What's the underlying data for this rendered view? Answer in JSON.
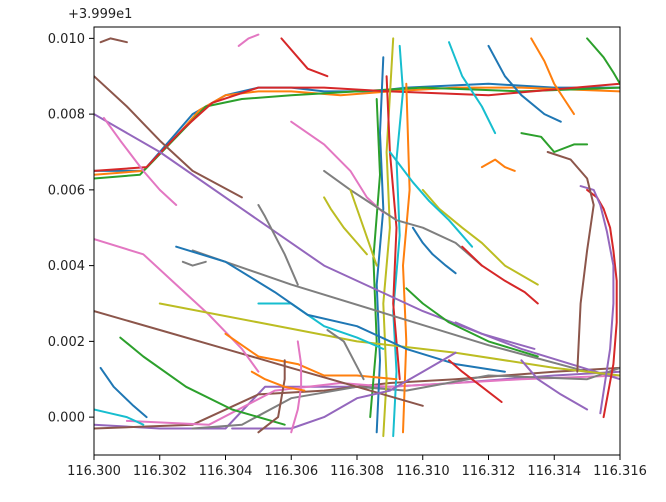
{
  "chart_data": {
    "type": "line",
    "title": "",
    "xlabel": "",
    "ylabel": "",
    "y_offset_text": "+3.999e1",
    "xlim": [
      116.3,
      116.316
    ],
    "ylim": [
      -0.001,
      0.0103
    ],
    "grid": false,
    "legend": "none",
    "x_ticks": [
      116.3,
      116.302,
      116.304,
      116.306,
      116.308,
      116.31,
      116.312,
      116.314,
      116.316
    ],
    "x_tick_labels": [
      "116.300",
      "116.302",
      "116.304",
      "116.306",
      "116.308",
      "116.310",
      "116.312",
      "116.314",
      "116.316"
    ],
    "y_ticks": [
      0.0,
      0.002,
      0.004,
      0.006,
      0.008,
      0.01
    ],
    "y_tick_labels": [
      "0.000",
      "0.002",
      "0.004",
      "0.006",
      "0.008",
      "0.010"
    ],
    "colors": [
      "#1f77b4",
      "#ff7f0e",
      "#2ca02c",
      "#d62728",
      "#9467bd",
      "#8c564b",
      "#e377c2",
      "#7f7f7f",
      "#bcbd22",
      "#17becf"
    ],
    "series": [
      {
        "x": [
          116.3,
          116.3015,
          116.3025,
          116.303,
          116.304,
          116.305,
          116.306,
          116.307,
          116.3085,
          116.3095,
          116.312,
          116.314,
          116.316
        ],
        "y": [
          0.0065,
          0.0065,
          0.0075,
          0.008,
          0.0085,
          0.0087,
          0.0087,
          0.0086,
          0.0086,
          0.0087,
          0.0088,
          0.0087,
          0.0087
        ]
      },
      {
        "x": [
          116.3,
          116.3015,
          116.3025,
          116.3032,
          116.304,
          116.305,
          116.306,
          116.3075,
          116.309,
          116.311,
          116.313,
          116.316
        ],
        "y": [
          0.0064,
          0.0065,
          0.0074,
          0.0081,
          0.0085,
          0.0086,
          0.0086,
          0.0085,
          0.0086,
          0.0087,
          0.0087,
          0.0086
        ]
      },
      {
        "x": [
          116.3,
          116.3014,
          116.3024,
          116.3034,
          116.3045,
          116.306,
          116.308,
          116.31,
          116.313,
          116.316
        ],
        "y": [
          0.0063,
          0.0064,
          0.0073,
          0.0082,
          0.0084,
          0.0085,
          0.0086,
          0.0087,
          0.0086,
          0.0087
        ]
      },
      {
        "x": [
          116.3,
          116.3016,
          116.3027,
          116.3036,
          116.305,
          116.307,
          116.309,
          116.312,
          116.316
        ],
        "y": [
          0.0065,
          0.0066,
          0.0076,
          0.0083,
          0.0087,
          0.0087,
          0.0086,
          0.0085,
          0.0088
        ]
      },
      {
        "x": [
          116.3,
          116.302,
          116.304,
          116.3052,
          116.307,
          116.309,
          116.311,
          116.314,
          116.316
        ],
        "y": [
          -0.0002,
          -0.0003,
          -0.0003,
          0.0008,
          0.0008,
          0.0008,
          0.0009,
          0.0011,
          0.0012
        ]
      },
      {
        "x": [
          116.3,
          116.303,
          116.305,
          116.307,
          116.309,
          116.311,
          116.314,
          116.316
        ],
        "y": [
          -0.0003,
          -0.0002,
          0.0006,
          0.0007,
          0.0009,
          0.001,
          0.0012,
          0.0013
        ]
      },
      {
        "x": [
          116.301,
          116.3035,
          116.3055,
          116.3075,
          116.309,
          116.311,
          116.313,
          116.316
        ],
        "y": [
          -0.0001,
          -0.0002,
          0.0007,
          0.0009,
          0.0008,
          0.0009,
          0.001,
          0.0011
        ]
      },
      {
        "x": [
          116.303,
          116.3045,
          116.306,
          116.308,
          116.3095,
          116.312,
          116.315,
          116.316
        ],
        "y": [
          -0.0003,
          -0.0002,
          0.0005,
          0.0008,
          0.0007,
          0.0011,
          0.001,
          0.0013
        ]
      },
      {
        "x": [
          116.3088,
          116.3089,
          116.3088,
          116.309,
          116.3089,
          116.309,
          116.3091
        ],
        "y": [
          -0.0005,
          0.001,
          0.003,
          0.005,
          0.007,
          0.0085,
          0.01
        ]
      },
      {
        "x": [
          116.3091,
          116.3092,
          116.3091,
          116.3093,
          116.3092,
          116.3094,
          116.3093
        ],
        "y": [
          -0.0005,
          0.0012,
          0.0028,
          0.0048,
          0.0068,
          0.0086,
          0.0098
        ]
      },
      {
        "x": [
          116.3086,
          116.3087,
          116.3086,
          116.3088,
          116.3087,
          116.3088
        ],
        "y": [
          -0.0004,
          0.0015,
          0.0035,
          0.0055,
          0.0075,
          0.0095
        ]
      },
      {
        "x": [
          116.3094,
          116.3095,
          116.3094,
          116.3096,
          116.3095
        ],
        "y": [
          -0.0004,
          0.002,
          0.004,
          0.006,
          0.0088
        ]
      },
      {
        "x": [
          116.3084,
          116.3086,
          116.3085,
          116.3087,
          116.3086
        ],
        "y": [
          0.0,
          0.002,
          0.0042,
          0.0064,
          0.0084
        ]
      },
      {
        "x": [
          116.3089,
          116.309,
          116.3092,
          116.3091,
          116.3093
        ],
        "y": [
          0.009,
          0.007,
          0.005,
          0.003,
          0.001
        ]
      },
      {
        "x": [
          116.3,
          116.302,
          116.3045,
          116.307,
          116.31,
          116.313,
          116.316
        ],
        "y": [
          0.008,
          0.007,
          0.0055,
          0.004,
          0.0028,
          0.0018,
          0.001
        ]
      },
      {
        "x": [
          116.3,
          116.302,
          116.304,
          116.306,
          116.308,
          116.31
        ],
        "y": [
          0.0028,
          0.0023,
          0.0018,
          0.0013,
          0.0008,
          0.0003
        ]
      },
      {
        "x": [
          116.3,
          116.3015,
          116.3025,
          116.3035,
          116.3045,
          116.305
        ],
        "y": [
          0.0047,
          0.0043,
          0.0035,
          0.0027,
          0.0018,
          0.0012
        ]
      },
      {
        "x": [
          116.303,
          116.306,
          116.309,
          116.312,
          116.315
        ],
        "y": [
          0.0044,
          0.0035,
          0.0027,
          0.0019,
          0.0012
        ]
      },
      {
        "x": [
          116.302,
          116.305,
          116.308,
          116.311,
          116.314,
          116.316
        ],
        "y": [
          0.003,
          0.0025,
          0.002,
          0.0017,
          0.0013,
          0.0011
        ]
      },
      {
        "x": [
          116.305,
          116.306,
          116.307,
          116.308,
          116.3088
        ],
        "y": [
          0.003,
          0.003,
          0.0024,
          0.0021,
          0.0018
        ]
      },
      {
        "x": [
          116.3025,
          116.304,
          116.3055,
          116.3065,
          116.308,
          116.3095,
          116.311,
          116.3125
        ],
        "y": [
          0.0045,
          0.0041,
          0.0033,
          0.0027,
          0.0024,
          0.0018,
          0.0014,
          0.0012
        ]
      },
      {
        "x": [
          116.304,
          116.305,
          116.3062,
          116.307,
          116.308,
          116.3092
        ],
        "y": [
          0.0022,
          0.0016,
          0.0014,
          0.0011,
          0.0011,
          0.001
        ]
      },
      {
        "x": [
          116.3008,
          116.3015,
          116.3028,
          116.3042,
          116.3058
        ],
        "y": [
          0.0021,
          0.0016,
          0.0008,
          0.0002,
          -0.0002
        ]
      },
      {
        "x": [
          116.315,
          116.3153,
          116.3155,
          116.3157,
          116.3158,
          116.3159,
          116.3159,
          116.3158,
          116.3155
        ],
        "y": [
          0.006,
          0.0058,
          0.0055,
          0.005,
          0.0044,
          0.0036,
          0.0025,
          0.0014,
          0.0
        ]
      },
      {
        "x": [
          116.3148,
          116.3152,
          116.3154,
          116.3156,
          116.3158,
          116.3158,
          116.3157,
          116.3154
        ],
        "y": [
          0.0061,
          0.006,
          0.0056,
          0.0049,
          0.004,
          0.003,
          0.0018,
          0.0001
        ]
      },
      {
        "x": [
          116.3138,
          116.3145,
          116.315,
          116.3152,
          116.315,
          116.3148,
          116.3147
        ],
        "y": [
          0.007,
          0.0068,
          0.0063,
          0.0056,
          0.0044,
          0.003,
          0.0012
        ]
      },
      {
        "x": [
          116.306,
          116.307,
          116.3078,
          116.3083,
          116.3088
        ],
        "y": [
          0.0078,
          0.0072,
          0.0065,
          0.0058,
          0.0054
        ]
      },
      {
        "x": [
          116.307,
          116.3078,
          116.3085,
          116.3092,
          116.31,
          116.311,
          116.3118
        ],
        "y": [
          0.0065,
          0.006,
          0.0056,
          0.0052,
          0.005,
          0.0046,
          0.004
        ]
      },
      {
        "x": [
          116.31,
          116.3105,
          116.3112,
          116.3118,
          116.3125,
          116.3135
        ],
        "y": [
          0.006,
          0.0055,
          0.005,
          0.0046,
          0.004,
          0.0035
        ]
      },
      {
        "x": [
          116.3108,
          116.3112,
          116.3115,
          116.3118,
          116.3122
        ],
        "y": [
          0.0099,
          0.009,
          0.0086,
          0.0082,
          0.0075
        ]
      },
      {
        "x": [
          116.312,
          116.3125,
          116.313,
          116.3137,
          116.3142
        ],
        "y": [
          0.0098,
          0.009,
          0.0085,
          0.008,
          0.0078
        ]
      },
      {
        "x": [
          116.3133,
          116.3137,
          116.314,
          116.3143,
          116.3146
        ],
        "y": [
          0.01,
          0.0094,
          0.0088,
          0.0084,
          0.008
        ]
      },
      {
        "x": [
          116.315,
          116.3155,
          116.3158,
          116.316
        ],
        "y": [
          0.01,
          0.0095,
          0.0091,
          0.0088
        ]
      },
      {
        "x": [
          116.3057,
          116.3062,
          116.3065,
          116.3071
        ],
        "y": [
          0.01,
          0.0095,
          0.0092,
          0.009
        ]
      },
      {
        "x": [
          116.3042,
          116.305,
          116.306,
          116.307,
          116.308,
          116.309,
          116.31,
          116.311
        ],
        "y": [
          -0.0003,
          -0.0003,
          -0.0003,
          0.0,
          0.0005,
          0.0007,
          0.0012,
          0.0017
        ]
      },
      {
        "x": [
          116.3058,
          116.3058,
          116.3057,
          116.3056,
          116.3053,
          116.305
        ],
        "y": [
          0.0015,
          0.001,
          0.0005,
          0.0,
          -0.0002,
          -0.0004
        ]
      },
      {
        "x": [
          116.3062,
          116.3063,
          116.3063,
          116.3062,
          116.306
        ],
        "y": [
          0.002,
          0.0014,
          0.0008,
          0.0002,
          -0.0004
        ]
      },
      {
        "x": [
          116.3071,
          116.3076,
          116.3079,
          116.3082
        ],
        "y": [
          0.0023,
          0.002,
          0.0015,
          0.001
        ]
      },
      {
        "x": [
          116.3078,
          116.308,
          116.3082,
          116.3084,
          116.3086
        ],
        "y": [
          0.006,
          0.0055,
          0.005,
          0.0045,
          0.004
        ]
      },
      {
        "x": [
          116.309,
          116.3097,
          116.3102,
          116.3108,
          116.3115
        ],
        "y": [
          0.007,
          0.0062,
          0.0057,
          0.0052,
          0.0045
        ]
      },
      {
        "x": [
          116.3097,
          116.31,
          116.3103,
          116.3107,
          116.311
        ],
        "y": [
          0.005,
          0.0046,
          0.0043,
          0.004,
          0.0038
        ]
      },
      {
        "x": [
          116.3118,
          116.3122,
          116.3125,
          116.3128
        ],
        "y": [
          0.0066,
          0.0068,
          0.0066,
          0.0065
        ]
      },
      {
        "x": [
          116.313,
          116.3136,
          116.314,
          116.3146,
          116.315
        ],
        "y": [
          0.0075,
          0.0074,
          0.007,
          0.0072,
          0.0072
        ]
      },
      {
        "x": [
          116.3112,
          116.3118,
          116.3125,
          116.3131,
          116.3135
        ],
        "y": [
          0.0045,
          0.004,
          0.0036,
          0.0033,
          0.003
        ]
      },
      {
        "x": [
          116.311,
          116.3118,
          116.3126,
          116.3134
        ],
        "y": [
          0.0025,
          0.0022,
          0.002,
          0.0018
        ]
      },
      {
        "x": [
          116.3,
          116.301,
          116.302,
          116.303,
          116.3045
        ],
        "y": [
          0.009,
          0.0082,
          0.0073,
          0.0065,
          0.0058
        ]
      },
      {
        "x": [
          116.3003,
          116.3008,
          116.3015,
          116.302,
          116.3025
        ],
        "y": [
          0.0079,
          0.0073,
          0.0065,
          0.006,
          0.0056
        ]
      },
      {
        "x": [
          116.305,
          116.3052,
          116.3055,
          116.3058,
          116.3062
        ],
        "y": [
          0.0056,
          0.0053,
          0.0048,
          0.0043,
          0.0035
        ]
      },
      {
        "x": [
          116.307,
          116.3072,
          116.3076,
          116.308,
          116.3083
        ],
        "y": [
          0.0058,
          0.0055,
          0.005,
          0.0046,
          0.0043
        ]
      },
      {
        "x": [
          116.3,
          116.3005,
          116.301,
          116.3015
        ],
        "y": [
          0.0002,
          0.0001,
          0.0,
          -0.0002
        ]
      },
      {
        "x": [
          116.3002,
          116.3006,
          116.3012,
          116.3016
        ],
        "y": [
          0.0013,
          0.0008,
          0.0003,
          0.0
        ]
      },
      {
        "x": [
          116.3048,
          116.3052,
          116.3058,
          116.3064
        ],
        "y": [
          0.0012,
          0.001,
          0.0008,
          0.0007
        ]
      },
      {
        "x": [
          116.3095,
          116.31,
          116.3108,
          116.312,
          116.3135
        ],
        "y": [
          0.0034,
          0.003,
          0.0025,
          0.002,
          0.0016
        ]
      },
      {
        "x": [
          116.3108,
          116.3112,
          116.3118,
          116.3124
        ],
        "y": [
          0.0015,
          0.0012,
          0.0008,
          0.0004
        ]
      },
      {
        "x": [
          116.313,
          116.3135,
          116.3142,
          116.315
        ],
        "y": [
          0.0015,
          0.001,
          0.0006,
          0.0002
        ]
      },
      {
        "x": [
          116.3002,
          116.3005,
          116.301
        ],
        "y": [
          0.0099,
          0.01,
          0.0099
        ]
      },
      {
        "x": [
          116.3044,
          116.3047,
          116.305
        ],
        "y": [
          0.0098,
          0.01,
          0.0101
        ]
      },
      {
        "x": [
          116.3027,
          116.303,
          116.3034
        ],
        "y": [
          0.0041,
          0.004,
          0.0041
        ]
      }
    ]
  }
}
